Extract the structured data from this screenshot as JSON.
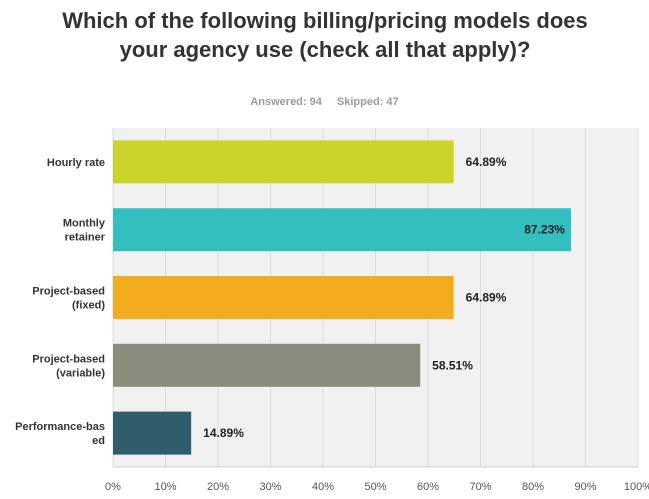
{
  "survey": {
    "answered": "Answered: 94",
    "skipped": "Skipped: 47"
  },
  "chart_data": {
    "type": "bar",
    "orientation": "horizontal",
    "title": "Which of the following billing/pricing models does your agency use (check all that apply)?",
    "categories": [
      [
        "Hourly rate"
      ],
      [
        "Monthly",
        "retainer"
      ],
      [
        "Project-based",
        "(fixed)"
      ],
      [
        "Project-based",
        "(variable)"
      ],
      [
        "Performance-bas",
        "ed"
      ]
    ],
    "values": [
      64.89,
      87.23,
      64.89,
      58.51,
      14.89
    ],
    "value_labels": [
      "64.89%",
      "87.23%",
      "64.89%",
      "58.51%",
      "14.89%"
    ],
    "colors": [
      "#cbd42b",
      "#33bfbf",
      "#f4ac1f",
      "#8c8c7c",
      "#2f5d6b"
    ],
    "xlim": [
      0,
      100
    ],
    "xticks": [
      0,
      10,
      20,
      30,
      40,
      50,
      60,
      70,
      80,
      90,
      100
    ],
    "xtick_labels": [
      "0%",
      "10%",
      "20%",
      "30%",
      "40%",
      "50%",
      "60%",
      "70%",
      "80%",
      "90%",
      "100%"
    ],
    "grid": true
  }
}
